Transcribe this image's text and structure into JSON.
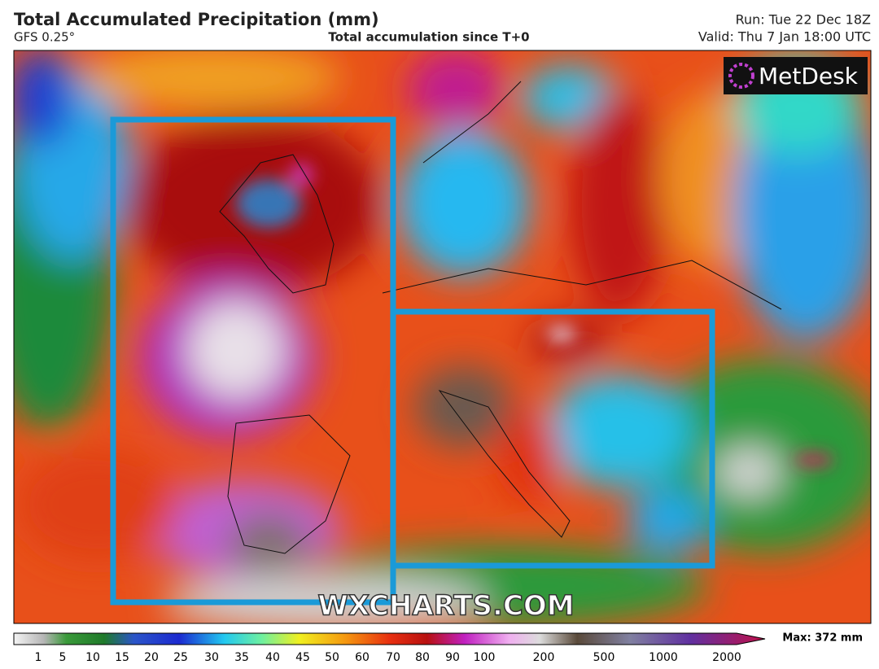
{
  "header": {
    "title": "Total Accumulated Precipitation (mm)",
    "model": "GFS 0.25°",
    "subtitle": "Total accumulation since T+0",
    "run": "Run: Tue 22 Dec 18Z",
    "valid": "Valid: Thu 7 Jan 18:00 UTC"
  },
  "logo": "MetDesk",
  "watermark": "WXCHARTS.COM",
  "colorbar": {
    "ticks": [
      1,
      5,
      10,
      15,
      20,
      25,
      30,
      35,
      40,
      45,
      50,
      60,
      70,
      80,
      90,
      100,
      200,
      500,
      1000,
      2000
    ],
    "max_label": "Max: 372 mm"
  }
}
